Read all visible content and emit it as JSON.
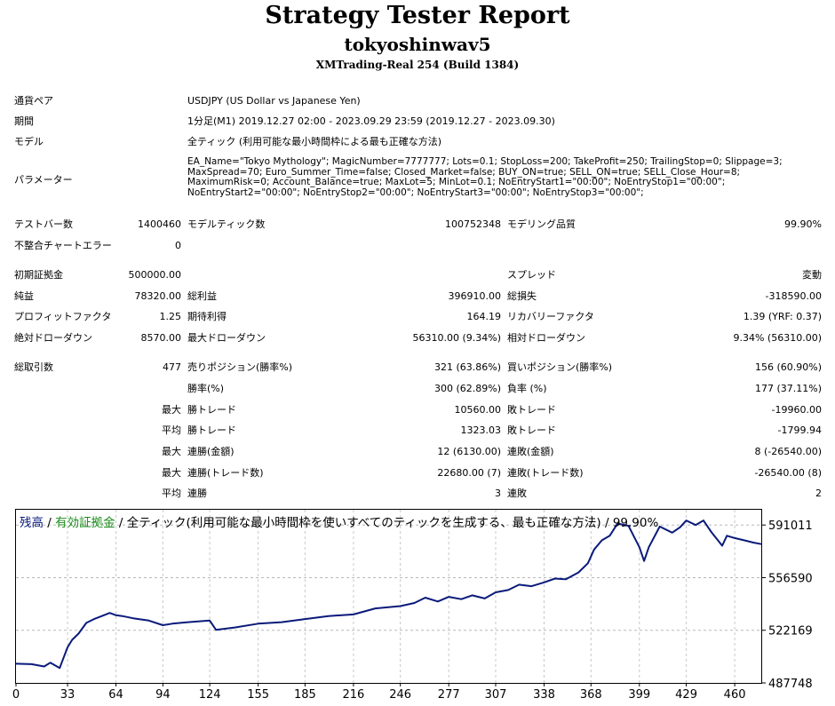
{
  "header": {
    "title": "Strategy Tester Report",
    "ea_name": "tokyoshinwav5",
    "server": "XMTrading-Real 254 (Build 1384)"
  },
  "settings": {
    "symbol_label": "通貨ペア",
    "symbol_value": "USDJPY (US Dollar vs Japanese Yen)",
    "period_label": "期間",
    "period_value": "1分足(M1) 2019.12.27 02:00 - 2023.09.29 23:59 (2019.12.27 - 2023.09.30)",
    "model_label": "モデル",
    "model_value": "全ティック (利用可能な最小時間枠による最も正確な方法)",
    "params_label": "パラメーター",
    "params_lines": [
      "EA_Name=\"Tokyo Mythology\"; MagicNumber=7777777; Lots=0.1; StopLoss=200; TakeProfit=250; TrailingStop=0; Slippage=3;",
      "MaxSpread=70; Euro_Summer_Time=false; Closed_Market=false; BUY_ON=true; SELL_ON=true; SELL_Close_Hour=8;",
      "MaximumRisk=0; Account_Balance=true; MaxLot=5; MinLot=0.1; NoEntryStart1=\"00:00\"; NoEntryStop1=\"00:00\";",
      "NoEntryStart2=\"00:00\"; NoEntryStop2=\"00:00\"; NoEntryStart3=\"00:00\"; NoEntryStop3=\"00:00\";"
    ]
  },
  "quality": {
    "bars_label": "テストバー数",
    "bars_value": "1400460",
    "ticks_label": "モデルティック数",
    "ticks_value": "100752348",
    "quality_label": "モデリング品質",
    "quality_value": "99.90%",
    "errors_label": "不整合チャートエラー",
    "errors_value": "0"
  },
  "results": {
    "deposit_label": "初期証拠金",
    "deposit_value": "500000.00",
    "spread_label": "スプレッド",
    "spread_value": "変動",
    "net_label": "純益",
    "net_value": "78320.00",
    "gross_profit_label": "総利益",
    "gross_profit_value": "396910.00",
    "gross_loss_label": "総損失",
    "gross_loss_value": "-318590.00",
    "pf_label": "プロフィットファクタ",
    "pf_value": "1.25",
    "payoff_label": "期待利得",
    "payoff_value": "164.19",
    "rf_label": "リカバリーファクタ",
    "rf_value": "1.39 (YRF: 0.37)",
    "abs_dd_label": "絶対ドローダウン",
    "abs_dd_value": "8570.00",
    "max_dd_label": "最大ドローダウン",
    "max_dd_value": "56310.00 (9.34%)",
    "rel_dd_label": "相対ドローダウン",
    "rel_dd_value": "9.34% (56310.00)"
  },
  "trades": {
    "total_label": "総取引数",
    "total_value": "477",
    "short_label": "売りポジション(勝率%)",
    "short_value": "321 (63.86%)",
    "long_label": "買いポジション(勝率%)",
    "long_value": "156 (60.90%)",
    "win_label": "勝率(%)",
    "win_value": "300 (62.89%)",
    "loss_label": "負率 (%)",
    "loss_value": "177 (37.11%)",
    "largest_prefix": "最大",
    "largest_win_label": "勝トレード",
    "largest_win_value": "10560.00",
    "largest_loss_label": "敗トレード",
    "largest_loss_value": "-19960.00",
    "average_prefix": "平均",
    "avg_win_label": "勝トレード",
    "avg_win_value": "1323.03",
    "avg_loss_label": "敗トレード",
    "avg_loss_value": "-1799.94",
    "max_prefix": "最大",
    "max_consec_wins_label": "連勝(金額)",
    "max_consec_wins_value": "12 (6130.00)",
    "max_consec_losses_label": "連敗(金額)",
    "max_consec_losses_value": "8 (-26540.00)",
    "max_prefix2": "最大",
    "max_consec_profit_label": "連勝(トレード数)",
    "max_consec_profit_value": "22680.00 (7)",
    "max_consec_loss_label": "連敗(トレード数)",
    "max_consec_loss_value": "-26540.00 (8)",
    "avg_prefix2": "平均",
    "avg_consec_wins_label": "連勝",
    "avg_consec_wins_value": "3",
    "avg_consec_losses_label": "連敗",
    "avg_consec_losses_value": "2"
  },
  "chart_data": {
    "type": "line",
    "caption_balance": "残高",
    "caption_sep1": " / ",
    "caption_equity": "有効証拠金",
    "caption_rest": " / 全ティック(利用可能な最小時間枠を使いすべてのティックを生成する、最も正確な方法) / 99.90%",
    "x_ticks": [
      "0",
      "33",
      "64",
      "94",
      "124",
      "155",
      "185",
      "216",
      "246",
      "277",
      "307",
      "338",
      "368",
      "399",
      "429",
      "460"
    ],
    "y_ticks": [
      "591011",
      "556590",
      "522169",
      "487748"
    ],
    "xlim": [
      0,
      477
    ],
    "ylim": [
      487748,
      601000
    ],
    "balance_color": "#0a1a7a",
    "equity_color": "#1a8a1a",
    "series": [
      {
        "key": "balance",
        "x": [
          0,
          10,
          18,
          22,
          28,
          33,
          36,
          40,
          45,
          50,
          55,
          60,
          64,
          68,
          75,
          85,
          94,
          100,
          110,
          124,
          128,
          140,
          155,
          170,
          185,
          200,
          216,
          230,
          246,
          255,
          262,
          270,
          277,
          285,
          292,
          300,
          307,
          315,
          322,
          330,
          338,
          345,
          352,
          360,
          366,
          370,
          375,
          380,
          385,
          392,
          399,
          402,
          405,
          412,
          420,
          425,
          429,
          435,
          440,
          445,
          452,
          455,
          460,
          466,
          472,
          477
        ],
        "y": [
          500320,
          500000,
          498500,
          501000,
          497500,
          511000,
          516000,
          520000,
          527000,
          529500,
          531500,
          533500,
          532000,
          531500,
          530000,
          528500,
          525500,
          526500,
          527500,
          528500,
          522500,
          524000,
          526500,
          527500,
          529500,
          531500,
          532500,
          536500,
          538000,
          540000,
          543500,
          541000,
          544000,
          542500,
          545000,
          543000,
          547000,
          548500,
          552000,
          551000,
          553500,
          556000,
          555500,
          560000,
          566000,
          575000,
          581000,
          584000,
          592000,
          590500,
          576500,
          567500,
          576500,
          590000,
          586000,
          589500,
          594000,
          591000,
          594000,
          586500,
          577500,
          584000,
          582500,
          581000,
          579500,
          578500
        ]
      }
    ]
  }
}
